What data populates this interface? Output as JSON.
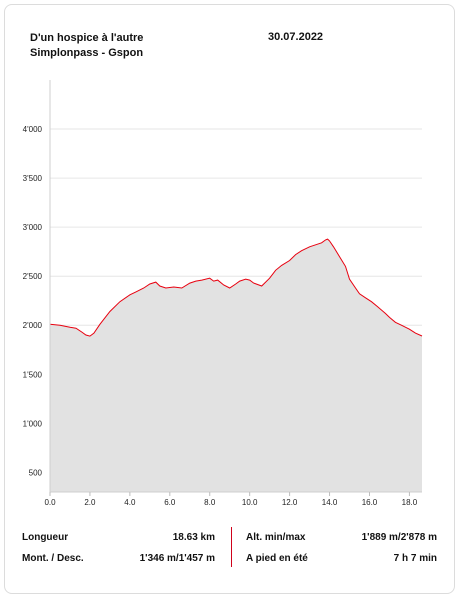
{
  "header": {
    "title_line1": "D'un hospice à l'autre",
    "title_line2": "Simplonpass - Gspon",
    "date": "30.07.2022"
  },
  "chart_data": {
    "type": "area",
    "title": "",
    "xlabel": "",
    "ylabel": "",
    "xlim": [
      0,
      18.63
    ],
    "ylim": [
      300,
      4500
    ],
    "x_ticks": [
      0,
      2,
      4,
      6,
      8,
      10,
      12,
      14,
      16,
      18
    ],
    "x_tick_labels": [
      "0.0",
      "2.0",
      "4.0",
      "6.0",
      "8.0",
      "10.0",
      "12.0",
      "14.0",
      "16.0",
      "18.0"
    ],
    "y_ticks": [
      500,
      1000,
      1500,
      2000,
      2500,
      3000,
      3500,
      4000
    ],
    "y_tick_labels": [
      "500",
      "1'000",
      "1'500",
      "2'000",
      "2'500",
      "3'000",
      "3'500",
      "4'000"
    ],
    "grid": true,
    "line_color": "#e8000f",
    "fill_color": "#e2e2e2",
    "series": [
      {
        "x": [
          0,
          0.5,
          1.0,
          1.3,
          1.6,
          1.8,
          2.0,
          2.2,
          2.5,
          3.0,
          3.5,
          4.0,
          4.3,
          4.7,
          5.0,
          5.3,
          5.5,
          5.8,
          6.2,
          6.6,
          7.0,
          7.3,
          7.6,
          8.0,
          8.2,
          8.4,
          8.7,
          9.0,
          9.3,
          9.5,
          9.8,
          10.0,
          10.2,
          10.6,
          11.0,
          11.3,
          11.6,
          12.0,
          12.3,
          12.6,
          13.0,
          13.3,
          13.6,
          13.8,
          13.9,
          14.0,
          14.2,
          14.5,
          14.8,
          15.0,
          15.3,
          15.5,
          15.8,
          16.1,
          16.4,
          16.8,
          17.0,
          17.3,
          17.6,
          18.0,
          18.3,
          18.63
        ],
        "y": [
          2010,
          2000,
          1980,
          1970,
          1930,
          1900,
          1889,
          1920,
          2010,
          2140,
          2240,
          2310,
          2340,
          2380,
          2420,
          2440,
          2400,
          2380,
          2390,
          2380,
          2430,
          2450,
          2460,
          2480,
          2450,
          2460,
          2410,
          2380,
          2420,
          2450,
          2470,
          2460,
          2430,
          2400,
          2480,
          2560,
          2610,
          2660,
          2720,
          2760,
          2800,
          2820,
          2840,
          2870,
          2878,
          2860,
          2800,
          2700,
          2600,
          2470,
          2380,
          2320,
          2280,
          2240,
          2190,
          2120,
          2080,
          2030,
          2000,
          1960,
          1920,
          1890
        ]
      }
    ]
  },
  "stats": {
    "length_label": "Longueur",
    "length_value": "18.63 km",
    "updown_label": "Mont. / Desc.",
    "updown_value": "1'346 m/1'457 m",
    "alt_label": "Alt. min/max",
    "alt_value": "1'889 m/2'878 m",
    "time_label": "A pied en été",
    "time_value": "7 h 7 min"
  }
}
